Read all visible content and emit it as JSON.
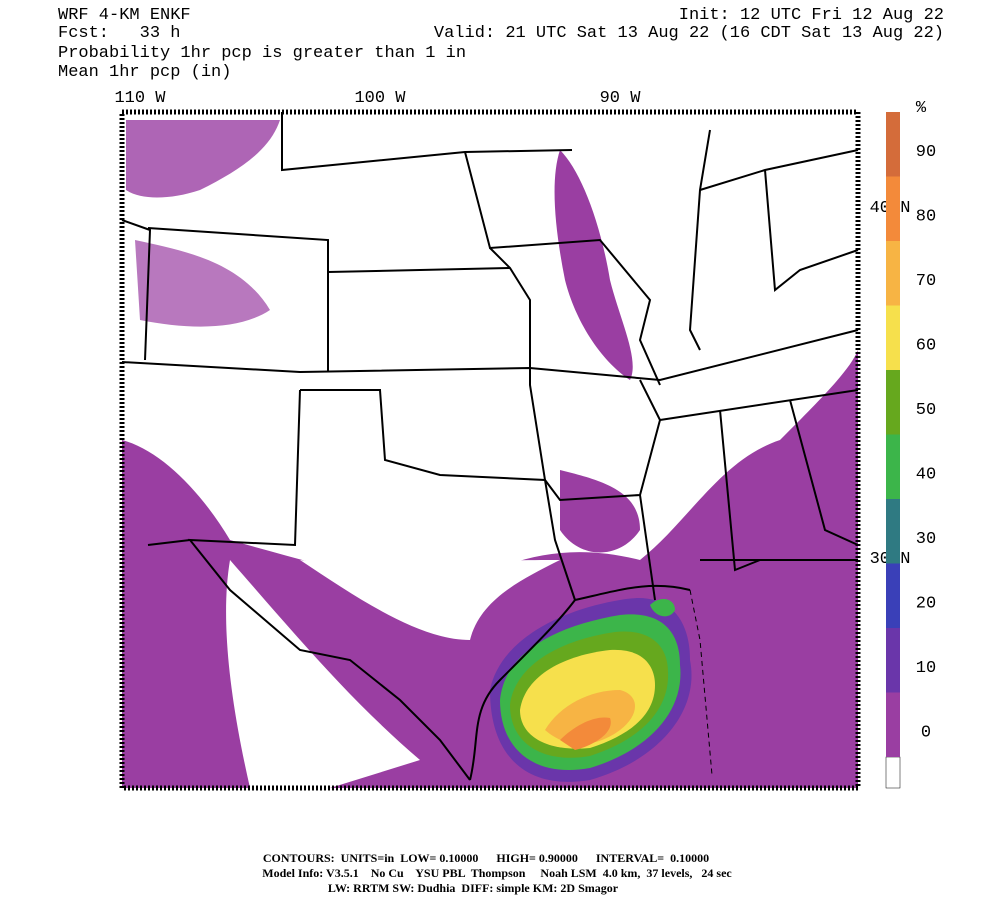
{
  "header": {
    "model": "WRF 4-KM ENKF",
    "forecast": "Fcst:   33 h",
    "init": "Init: 12 UTC Fri 12 Aug 22",
    "valid": "Valid: 21 UTC Sat 13 Aug 22 (16 CDT Sat 13 Aug 22)",
    "field1": "Probability 1hr pcp is greater than 1 in",
    "field2": "Mean 1hr pcp (in)"
  },
  "map": {
    "longitude_labels": [
      "110 W",
      "100 W",
      "90 W"
    ],
    "latitude_labels": [
      "40 N",
      "30 N"
    ]
  },
  "colorbar": {
    "unit": "%",
    "bands": [
      {
        "label": "0",
        "color": "#9a3ea2"
      },
      {
        "label": "10",
        "color": "#6a36aa"
      },
      {
        "label": "20",
        "color": "#3a40b8"
      },
      {
        "label": "30",
        "color": "#2f7a82"
      },
      {
        "label": "40",
        "color": "#3cb54a"
      },
      {
        "label": "50",
        "color": "#66a81e"
      },
      {
        "label": "60",
        "color": "#f6e04c"
      },
      {
        "label": "70",
        "color": "#f7b444"
      },
      {
        "label": "80",
        "color": "#f38a3a"
      },
      {
        "label": "90",
        "color": "#d46c3a"
      }
    ]
  },
  "footer": {
    "contours": "CONTOURS:  UNITS=in  LOW= 0.10000      HIGH= 0.90000      INTERVAL=  0.10000",
    "model_info": "Model Info: V3.5.1    No Cu    YSU PBL  Thompson     Noah LSM  4.0 km,  37 levels,   24 sec",
    "physics": "LW: RRTM SW: Dudhia  DIFF: simple KM: 2D Smagor"
  }
}
